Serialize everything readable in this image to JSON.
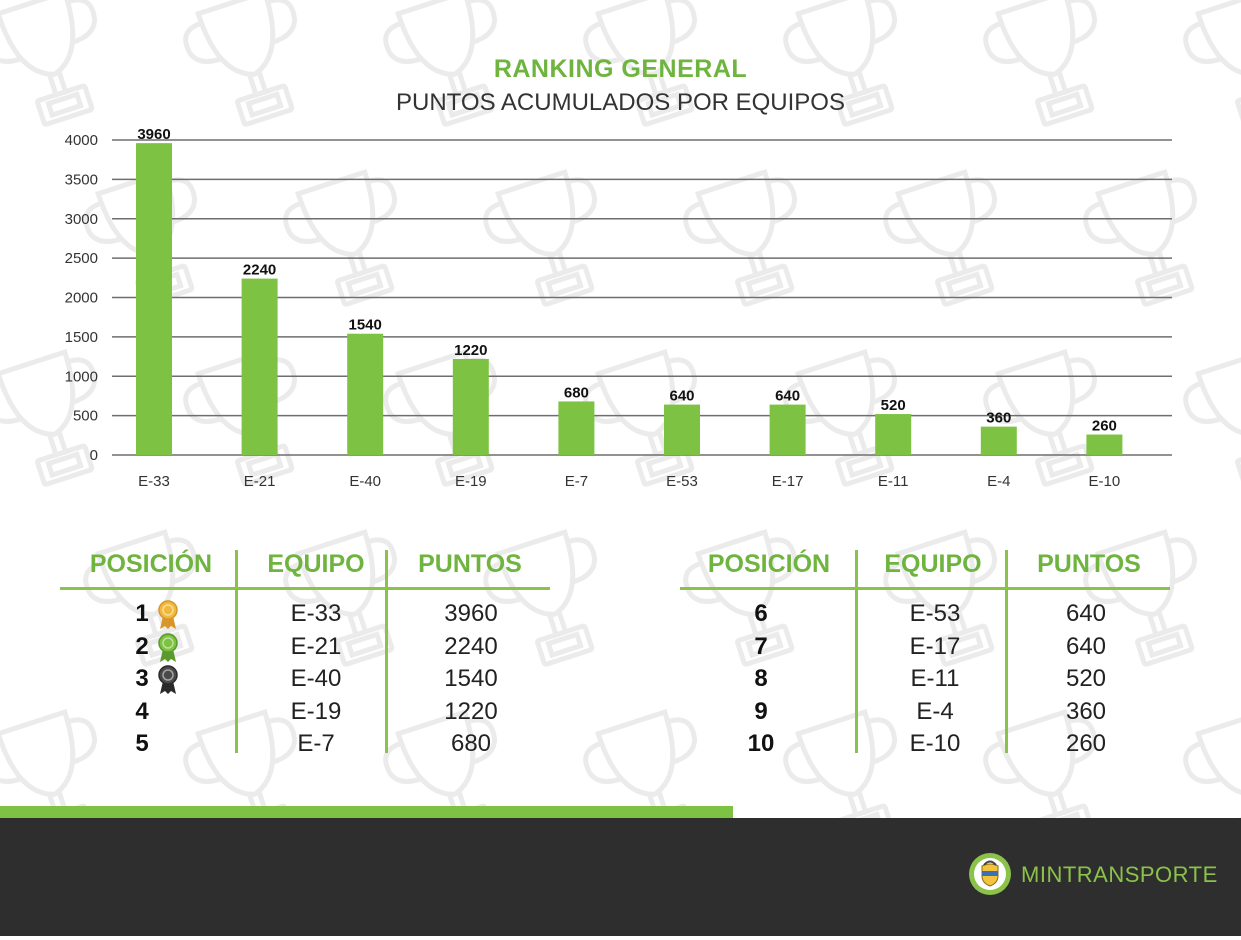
{
  "header": {
    "title": "RANKING GENERAL",
    "subtitle": "PUNTOS ACUMULADOS POR EQUIPOS"
  },
  "chart_data": {
    "type": "bar",
    "categories": [
      "E-33",
      "E-21",
      "E-40",
      "E-19",
      "E-7",
      "E-53",
      "E-17",
      "E-11",
      "E-4",
      "E-10"
    ],
    "values": [
      3960,
      2240,
      1540,
      1220,
      680,
      640,
      640,
      520,
      360,
      260
    ],
    "ylim": [
      0,
      4000
    ],
    "yticks": [
      0,
      500,
      1000,
      1500,
      2000,
      2500,
      3000,
      3500,
      4000
    ],
    "grid": true,
    "bar_color": "#7dc242",
    "data_labels": true
  },
  "tables": {
    "headers": {
      "position": "POSICIÓN",
      "team": "EQUIPO",
      "points": "PUNTOS"
    },
    "left": [
      {
        "position": "1",
        "team": "E-33",
        "points": "3960",
        "medal": "gold-medal-icon"
      },
      {
        "position": "2",
        "team": "E-21",
        "points": "2240",
        "medal": "green-medal-icon"
      },
      {
        "position": "3",
        "team": "E-40",
        "points": "1540",
        "medal": "dark-medal-icon"
      },
      {
        "position": "4",
        "team": "E-19",
        "points": "1220"
      },
      {
        "position": "5",
        "team": "E-7",
        "points": "680"
      }
    ],
    "right": [
      {
        "position": "6",
        "team": "E-53",
        "points": "640"
      },
      {
        "position": "7",
        "team": "E-17",
        "points": "640"
      },
      {
        "position": "8",
        "team": "E-11",
        "points": "520"
      },
      {
        "position": "9",
        "team": "E-4",
        "points": "360"
      },
      {
        "position": "10",
        "team": "E-10",
        "points": "260"
      }
    ]
  },
  "footer": {
    "brand": "MINTRANSPORTE",
    "accent": "#7dc242",
    "background": "#2e2e2e"
  }
}
